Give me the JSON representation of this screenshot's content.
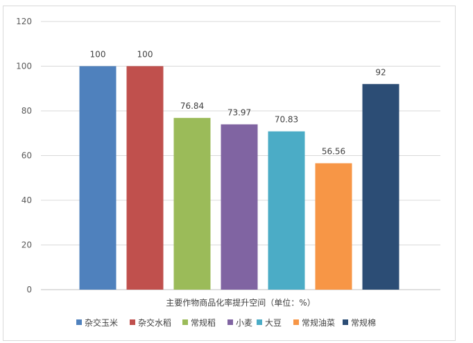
{
  "chart_data": {
    "type": "bar",
    "categories": [
      "杂交玉米",
      "杂交水稻",
      "常规稻",
      "小麦",
      "大豆",
      "常规油菜",
      "常规棉"
    ],
    "values": [
      100,
      100,
      76.84,
      73.97,
      70.83,
      56.56,
      92
    ],
    "value_labels": [
      "100",
      "100",
      "76.84",
      "73.97",
      "70.83",
      "56.56",
      "92"
    ],
    "colors": [
      "#4F81BD",
      "#C0504D",
      "#9BBB59",
      "#8064A2",
      "#4BACC6",
      "#F79646",
      "#2C4D75"
    ],
    "xlabel": "主要作物商品化率提升空间（单位：%）",
    "ylabel": "",
    "title": "",
    "ylim": [
      0,
      120
    ],
    "yticks": [
      0,
      20,
      40,
      60,
      80,
      100,
      120
    ],
    "grid": true,
    "legend_position": "bottom",
    "legend": [
      "杂交玉米",
      "杂交水稻",
      "常规稻",
      "小麦",
      "大豆",
      "常规油菜",
      "常规棉"
    ]
  }
}
